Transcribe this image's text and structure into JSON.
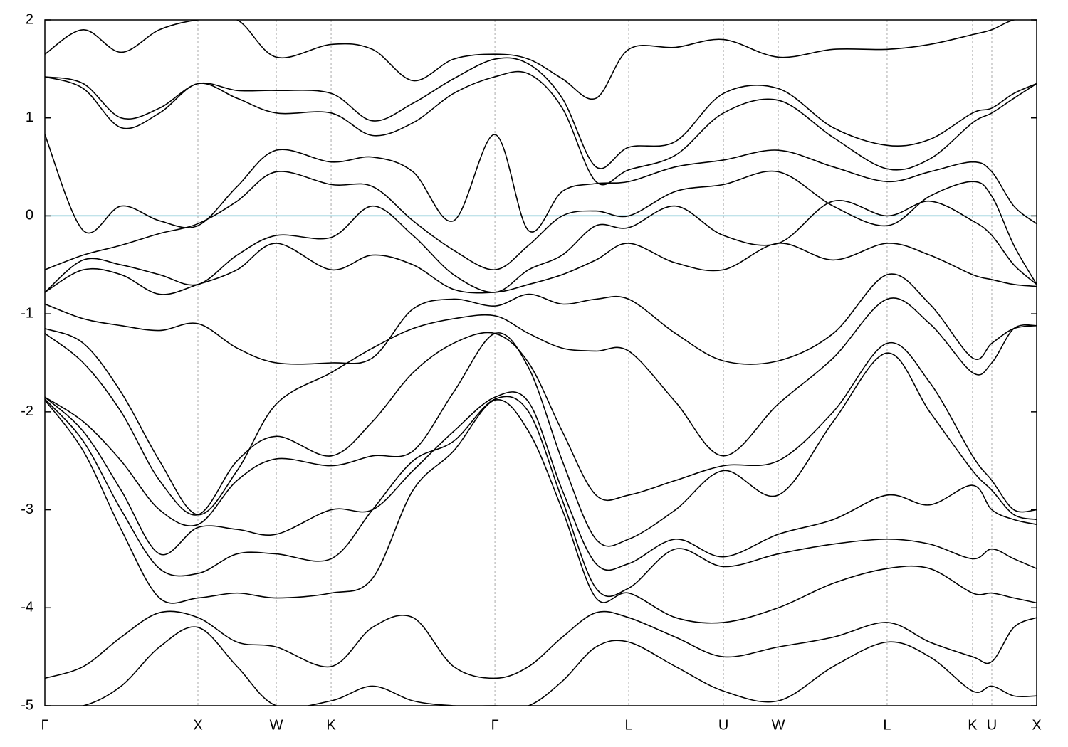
{
  "chart_data": {
    "type": "line",
    "x": [
      0,
      0.251,
      0.498,
      0.749,
      1.0,
      1.256,
      1.512,
      1.87,
      2.14,
      2.405,
      2.67,
      2.94,
      3.16,
      3.38,
      3.6,
      3.814,
      4.12,
      4.433,
      4.791,
      5.15,
      5.502,
      5.78,
      6.06,
      6.186,
      6.33,
      6.479
    ],
    "xlim": [
      0,
      6.479
    ],
    "xticks": [
      {
        "value": 0,
        "label": "Γ"
      },
      {
        "value": 1.0,
        "label": "X"
      },
      {
        "value": 1.512,
        "label": "W"
      },
      {
        "value": 1.87,
        "label": "K"
      },
      {
        "value": 2.94,
        "label": "Γ"
      },
      {
        "value": 3.814,
        "label": "L"
      },
      {
        "value": 4.433,
        "label": "U"
      },
      {
        "value": 4.791,
        "label": "W"
      },
      {
        "value": 5.502,
        "label": "L"
      },
      {
        "value": 6.06,
        "label": "K"
      },
      {
        "value": 6.186,
        "label": "U"
      },
      {
        "value": 6.479,
        "label": "X"
      }
    ],
    "ylim": [
      -5,
      2
    ],
    "yticks": [
      -5,
      -4,
      -3,
      -2,
      -1,
      0,
      1,
      2
    ],
    "xgrid": true,
    "hlines": [
      {
        "value": 0,
        "color": "#5ab4c8"
      }
    ],
    "series": [
      {
        "color": "#000000",
        "values": [
          1.65,
          1.9,
          1.67,
          1.9,
          2.0,
          2.0,
          1.62,
          1.75,
          1.7,
          1.38,
          1.6,
          1.65,
          1.6,
          1.4,
          1.2,
          1.7,
          1.72,
          1.8,
          1.62,
          1.7,
          1.7,
          1.75,
          1.85,
          1.9,
          2.0,
          2.0
        ]
      },
      {
        "color": "#000000",
        "values": [
          1.42,
          1.35,
          1.0,
          1.1,
          1.35,
          1.28,
          1.28,
          1.25,
          0.97,
          1.15,
          1.4,
          1.6,
          1.55,
          1.2,
          0.5,
          0.7,
          0.76,
          1.25,
          1.3,
          0.9,
          0.72,
          0.78,
          1.05,
          1.1,
          1.25,
          1.35
        ]
      },
      {
        "color": "#000000",
        "values": [
          1.42,
          1.3,
          0.9,
          1.05,
          1.35,
          1.2,
          1.05,
          1.05,
          0.82,
          0.95,
          1.25,
          1.42,
          1.45,
          1.1,
          0.35,
          0.47,
          0.62,
          1.05,
          1.18,
          0.8,
          0.48,
          0.58,
          0.95,
          1.05,
          1.2,
          1.35
        ]
      },
      {
        "color": "#000000",
        "values": [
          0.83,
          -0.15,
          0.1,
          -0.05,
          -0.1,
          0.3,
          0.67,
          0.55,
          0.6,
          0.45,
          -0.05,
          0.83,
          -0.15,
          0.25,
          0.33,
          0.35,
          0.5,
          0.57,
          0.67,
          0.5,
          0.35,
          0.45,
          0.55,
          0.45,
          0.1,
          -0.08
        ]
      },
      {
        "color": "#000000",
        "values": [
          -0.55,
          -0.4,
          -0.3,
          -0.18,
          -0.08,
          0.15,
          0.45,
          0.32,
          0.3,
          -0.05,
          -0.35,
          -0.55,
          -0.3,
          0.0,
          0.05,
          0.0,
          0.25,
          0.32,
          0.45,
          0.1,
          -0.1,
          0.2,
          0.35,
          0.2,
          -0.3,
          -0.7
        ]
      },
      {
        "color": "#000000",
        "values": [
          -0.78,
          -0.45,
          -0.5,
          -0.6,
          -0.7,
          -0.4,
          -0.2,
          -0.22,
          0.1,
          -0.2,
          -0.6,
          -0.78,
          -0.55,
          -0.4,
          -0.1,
          -0.12,
          0.1,
          -0.2,
          -0.28,
          0.15,
          0.0,
          0.15,
          -0.05,
          -0.2,
          -0.5,
          -0.7
        ]
      },
      {
        "color": "#000000",
        "values": [
          -0.78,
          -0.55,
          -0.6,
          -0.8,
          -0.7,
          -0.55,
          -0.28,
          -0.55,
          -0.4,
          -0.5,
          -0.75,
          -0.78,
          -0.7,
          -0.6,
          -0.45,
          -0.28,
          -0.48,
          -0.55,
          -0.28,
          -0.45,
          -0.28,
          -0.4,
          -0.6,
          -0.65,
          -0.7,
          -0.72
        ]
      },
      {
        "color": "#000000",
        "values": [
          -0.9,
          -1.05,
          -1.12,
          -1.17,
          -1.1,
          -1.35,
          -1.5,
          -1.5,
          -1.45,
          -0.95,
          -0.85,
          -0.92,
          -0.8,
          -0.9,
          -0.85,
          -0.85,
          -1.2,
          -1.48,
          -1.48,
          -1.2,
          -0.6,
          -0.9,
          -1.45,
          -1.3,
          -1.15,
          -1.12
        ]
      },
      {
        "color": "#000000",
        "values": [
          -1.15,
          -1.3,
          -1.8,
          -2.5,
          -3.05,
          -2.6,
          -1.92,
          -1.6,
          -1.35,
          -1.15,
          -1.05,
          -1.02,
          -1.2,
          -1.35,
          -1.38,
          -1.38,
          -1.9,
          -2.45,
          -1.92,
          -1.45,
          -0.85,
          -1.1,
          -1.6,
          -1.5,
          -1.15,
          -1.12
        ]
      },
      {
        "color": "#000000",
        "values": [
          -1.2,
          -1.5,
          -2.0,
          -2.7,
          -3.05,
          -2.5,
          -2.25,
          -2.45,
          -2.1,
          -1.6,
          -1.3,
          -1.2,
          -1.5,
          -2.2,
          -2.85,
          -2.85,
          -2.7,
          -2.55,
          -2.5,
          -2.0,
          -1.3,
          -1.7,
          -2.45,
          -2.7,
          -3.0,
          -3.0
        ]
      },
      {
        "color": "#000000",
        "values": [
          -1.85,
          -2.1,
          -2.5,
          -3.0,
          -3.15,
          -2.7,
          -2.48,
          -2.55,
          -2.45,
          -2.4,
          -1.8,
          -1.2,
          -1.55,
          -2.5,
          -3.3,
          -3.3,
          -3.0,
          -2.6,
          -2.85,
          -2.1,
          -1.4,
          -2.0,
          -2.6,
          -2.8,
          -3.05,
          -3.1
        ]
      },
      {
        "color": "#000000",
        "values": [
          -1.85,
          -2.2,
          -2.8,
          -3.45,
          -3.18,
          -3.2,
          -3.25,
          -3.0,
          -3.0,
          -2.6,
          -2.2,
          -1.85,
          -1.9,
          -2.8,
          -3.55,
          -3.55,
          -3.3,
          -3.48,
          -3.25,
          -3.1,
          -2.85,
          -2.95,
          -2.75,
          -3.0,
          -3.1,
          -3.15
        ]
      },
      {
        "color": "#000000",
        "values": [
          -1.87,
          -2.3,
          -3.0,
          -3.6,
          -3.65,
          -3.45,
          -3.45,
          -3.5,
          -3.0,
          -2.5,
          -2.3,
          -1.87,
          -2.0,
          -2.9,
          -3.8,
          -3.8,
          -3.4,
          -3.58,
          -3.45,
          -3.35,
          -3.3,
          -3.35,
          -3.5,
          -3.4,
          -3.5,
          -3.6
        ]
      },
      {
        "color": "#000000",
        "values": [
          -1.88,
          -2.4,
          -3.2,
          -3.9,
          -3.9,
          -3.85,
          -3.9,
          -3.85,
          -3.7,
          -2.8,
          -2.4,
          -1.88,
          -2.2,
          -3.0,
          -3.9,
          -3.85,
          -4.1,
          -4.15,
          -4.0,
          -3.75,
          -3.6,
          -3.6,
          -3.85,
          -3.85,
          -3.9,
          -3.95
        ]
      },
      {
        "color": "#000000",
        "values": [
          -4.72,
          -4.6,
          -4.3,
          -4.05,
          -4.1,
          -4.35,
          -4.4,
          -4.6,
          -4.2,
          -4.1,
          -4.6,
          -4.72,
          -4.6,
          -4.3,
          -4.05,
          -4.1,
          -4.3,
          -4.5,
          -4.4,
          -4.3,
          -4.15,
          -4.35,
          -4.5,
          -4.55,
          -4.2,
          -4.1
        ]
      },
      {
        "color": "#000000",
        "values": [
          -5.0,
          -5.0,
          -4.8,
          -4.4,
          -4.2,
          -4.6,
          -5.0,
          -4.95,
          -4.8,
          -4.95,
          -5.0,
          -5.0,
          -5.0,
          -4.75,
          -4.4,
          -4.35,
          -4.6,
          -4.85,
          -4.95,
          -4.6,
          -4.35,
          -4.5,
          -4.85,
          -4.8,
          -4.9,
          -4.9
        ]
      }
    ]
  }
}
